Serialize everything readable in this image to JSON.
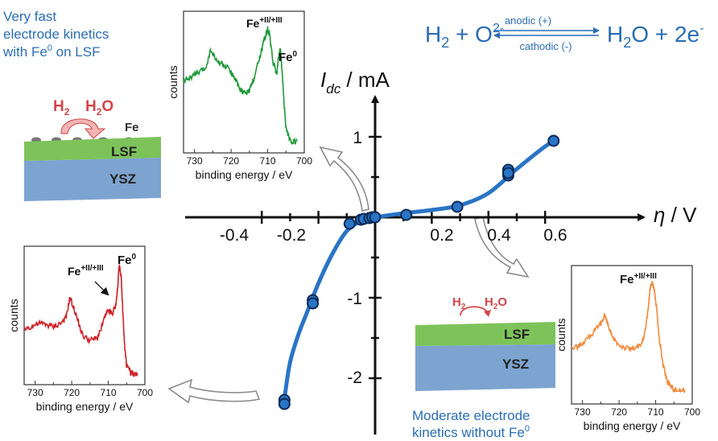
{
  "reaction": {
    "left": "H",
    "h_sub": "2",
    "plus": " + O",
    "o_sup": "2-",
    "right_a": "H",
    "right_sub": "2",
    "right_b": "O + 2e",
    "right_sup": "-",
    "anodic": "anodic (+)",
    "cathodic": "cathodic (-)"
  },
  "top_left_note": {
    "line1": "Very fast",
    "line2": "electrode kinetics",
    "line3_a": "with Fe",
    "line3_sup": "0",
    "line3_b": " on LSF"
  },
  "bottom_note": {
    "line1": "Moderate electrode",
    "line2_a": "kinetics without Fe",
    "line2_sup": "0"
  },
  "left_schematic": {
    "h2": "H",
    "h2_sub": "2",
    "h2o_a": "H",
    "h2o_sub": "2",
    "h2o_b": "O",
    "fe": "Fe",
    "lsf": "LSF",
    "ysz": "YSZ"
  },
  "bottom_schematic": {
    "h2": "H",
    "h2_sub": "2",
    "h2o_a": "H",
    "h2o_sub": "2",
    "h2o_b": "O",
    "lsf": "LSF",
    "ysz": "YSZ"
  },
  "main_axes": {
    "y_label_I": "I",
    "y_label_sub": "dc",
    "y_label_unit": " / mA",
    "x_label_eta": "η",
    "x_label_unit": " / V",
    "x_ticks": [
      "-0.4",
      "-0.2",
      "0.2",
      "0.4",
      "0.6"
    ],
    "y_ticks": [
      "1",
      "-1",
      "-2"
    ]
  },
  "chart_data": [
    {
      "type": "scatter",
      "name": "main-iv",
      "xlabel": "η / V",
      "ylabel": "Idc / mA",
      "xlim": [
        -0.5,
        0.75
      ],
      "ylim": [
        -2.5,
        1.25
      ],
      "points": [
        {
          "x": -0.32,
          "y": -2.27
        },
        {
          "x": -0.32,
          "y": -2.32
        },
        {
          "x": -0.22,
          "y": -1.03
        },
        {
          "x": -0.22,
          "y": -1.07
        },
        {
          "x": -0.09,
          "y": -0.08
        },
        {
          "x": -0.05,
          "y": -0.03
        },
        {
          "x": -0.04,
          "y": -0.02
        },
        {
          "x": -0.02,
          "y": -0.01
        },
        {
          "x": -0.01,
          "y": 0.0
        },
        {
          "x": 0.0,
          "y": 0.0
        },
        {
          "x": 0.11,
          "y": 0.03
        },
        {
          "x": 0.29,
          "y": 0.13
        },
        {
          "x": 0.47,
          "y": 0.59
        },
        {
          "x": 0.47,
          "y": 0.52
        },
        {
          "x": 0.47,
          "y": 0.55
        },
        {
          "x": 0.63,
          "y": 0.95
        }
      ],
      "fit": [
        [
          -0.32,
          -2.25
        ],
        [
          -0.3,
          -1.8
        ],
        [
          -0.27,
          -1.45
        ],
        [
          -0.24,
          -1.18
        ],
        [
          -0.2,
          -0.82
        ],
        [
          -0.15,
          -0.45
        ],
        [
          -0.1,
          -0.17
        ],
        [
          -0.05,
          -0.05
        ],
        [
          0.0,
          0.0
        ],
        [
          0.1,
          0.05
        ],
        [
          0.2,
          0.09
        ],
        [
          0.3,
          0.15
        ],
        [
          0.4,
          0.3
        ],
        [
          0.5,
          0.6
        ],
        [
          0.6,
          0.88
        ],
        [
          0.64,
          0.96
        ]
      ]
    },
    {
      "type": "line",
      "name": "xps-fe0-lsf",
      "color": "#1f9a3a",
      "xlabel": "binding energy / eV",
      "ylabel": "counts",
      "xlim": [
        733,
        700
      ],
      "x_ticks": [
        730,
        720,
        710,
        700
      ],
      "peak_labels": [
        {
          "base": "Fe",
          "sup": "+II/+III"
        },
        {
          "base": "Fe",
          "sup": "0"
        }
      ],
      "x": [
        733,
        731,
        729,
        727,
        725.5,
        724,
        722.5,
        721,
        719,
        718,
        717,
        716,
        715,
        714,
        713,
        712,
        711,
        710,
        709.5,
        708.5,
        707.5,
        707,
        706.5,
        706,
        705.5,
        705,
        704,
        703,
        702
      ],
      "y": [
        0.56,
        0.58,
        0.62,
        0.66,
        0.82,
        0.72,
        0.7,
        0.66,
        0.58,
        0.5,
        0.46,
        0.44,
        0.47,
        0.55,
        0.66,
        0.78,
        0.9,
        1.0,
        0.95,
        0.7,
        0.62,
        0.76,
        0.82,
        0.6,
        0.35,
        0.15,
        0.04,
        0.02,
        0.03
      ]
    },
    {
      "type": "line",
      "name": "xps-fe0-red",
      "color": "#cf2027",
      "xlabel": "binding energy / eV",
      "ylabel": "counts",
      "xlim": [
        733,
        700
      ],
      "x_ticks": [
        730,
        720,
        710,
        700
      ],
      "peak_labels": [
        {
          "base": "Fe",
          "sup": "+II/+III"
        },
        {
          "base": "Fe",
          "sup": "0"
        }
      ],
      "x": [
        733,
        731,
        729,
        727,
        725,
        723,
        721.5,
        720.5,
        719,
        717,
        715,
        713,
        711,
        710,
        709,
        708,
        707.5,
        707,
        706.5,
        706,
        705.5,
        705,
        704,
        703,
        702
      ],
      "y": [
        0.42,
        0.44,
        0.47,
        0.46,
        0.44,
        0.47,
        0.52,
        0.7,
        0.56,
        0.36,
        0.32,
        0.34,
        0.52,
        0.58,
        0.55,
        0.62,
        0.76,
        1.0,
        0.88,
        0.55,
        0.25,
        0.1,
        0.04,
        0.02,
        0.03
      ]
    },
    {
      "type": "line",
      "name": "xps-no-fe0",
      "color": "#f08a3c",
      "xlabel": "binding energy / eV",
      "ylabel": "counts",
      "xlim": [
        733,
        700
      ],
      "x_ticks": [
        730,
        720,
        710,
        700
      ],
      "peak_labels": [
        {
          "base": "Fe",
          "sup": "+II/+III"
        }
      ],
      "x": [
        733,
        731,
        729,
        727,
        725,
        724,
        723,
        722,
        720,
        718,
        716,
        714,
        713,
        712,
        711.5,
        711,
        710.5,
        710,
        709,
        708,
        707,
        706,
        705,
        704,
        702
      ],
      "y": [
        0.42,
        0.44,
        0.5,
        0.56,
        0.63,
        0.72,
        0.62,
        0.52,
        0.45,
        0.42,
        0.42,
        0.44,
        0.55,
        0.78,
        0.95,
        1.0,
        0.96,
        0.85,
        0.5,
        0.28,
        0.15,
        0.09,
        0.06,
        0.05,
        0.05
      ]
    }
  ]
}
